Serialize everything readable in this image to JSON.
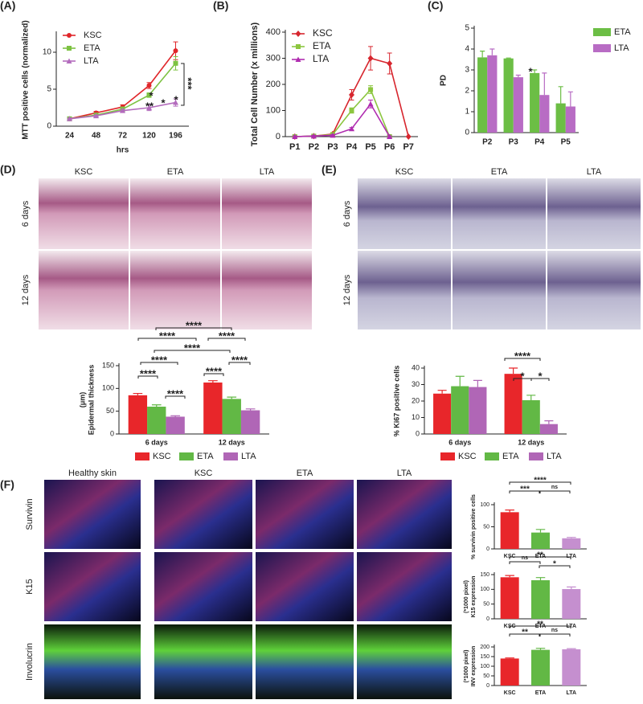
{
  "panels": {
    "labels": [
      "(A)",
      "(B)",
      "(C)",
      "(D)",
      "(E)",
      "(F)"
    ],
    "D": {
      "columns": [
        "KSC",
        "ETA",
        "LTA"
      ],
      "rows": [
        "6 days",
        "12 days"
      ]
    },
    "E": {
      "columns": [
        "KSC",
        "ETA",
        "LTA"
      ],
      "rows": [
        "6 days",
        "12 days"
      ]
    },
    "F": {
      "columns": [
        "Healthy skin",
        "KSC",
        "ETA",
        "LTA"
      ],
      "rows": [
        "Survivin",
        "K15",
        "Involucrin"
      ]
    }
  },
  "chart_data": [
    {
      "type": "line",
      "ylabel": "MTT positive cells (normalized)",
      "xlabel": "hrs",
      "categories": [
        "24",
        "48",
        "72",
        "120",
        "196"
      ],
      "ylim": [
        0,
        12.5
      ],
      "yticks": [
        0,
        5,
        10
      ],
      "legend": "upper left",
      "series": [
        {
          "name": "KSC",
          "color": "#e0262a",
          "marker": "circle",
          "values": [
            1,
            1.8,
            2.6,
            5.5,
            10.2
          ],
          "errors": [
            0.1,
            0.2,
            0.3,
            0.4,
            1.2
          ]
        },
        {
          "name": "ETA",
          "color": "#7dc242",
          "marker": "square",
          "values": [
            1,
            1.5,
            2.3,
            4.2,
            8.5
          ],
          "errors": [
            0.1,
            0.2,
            0.3,
            0.3,
            0.9
          ]
        },
        {
          "name": "LTA",
          "color": "#b36bbd",
          "marker": "triangle",
          "values": [
            1,
            1.4,
            2.1,
            2.5,
            3.2
          ],
          "errors": [
            0.1,
            0.1,
            0.2,
            0.4,
            0.5
          ]
        }
      ],
      "annotations": [
        "*",
        "**",
        "*",
        "*",
        "***"
      ]
    },
    {
      "type": "line",
      "ylabel": "Total Cell Number (x millions)",
      "categories": [
        "P1",
        "P2",
        "P3",
        "P4",
        "P5",
        "P6",
        "P7"
      ],
      "ylim": [
        0,
        400
      ],
      "yticks": [
        0,
        100,
        200,
        300,
        400
      ],
      "legend": "upper left",
      "series": [
        {
          "name": "KSC",
          "color": "#d7262e",
          "marker": "diamond",
          "values": [
            0,
            2,
            10,
            160,
            300,
            280,
            0
          ],
          "errors": [
            3,
            3,
            5,
            20,
            45,
            40,
            null
          ]
        },
        {
          "name": "ETA",
          "color": "#8cc63f",
          "marker": "square",
          "values": [
            0,
            2,
            8,
            100,
            180,
            0,
            null
          ],
          "errors": [
            3,
            3,
            4,
            10,
            15,
            3,
            null
          ]
        },
        {
          "name": "LTA",
          "color": "#b02cb0",
          "marker": "triangle",
          "values": [
            0,
            2,
            5,
            30,
            125,
            0,
            null
          ],
          "errors": [
            3,
            3,
            3,
            5,
            15,
            3,
            null
          ]
        }
      ]
    },
    {
      "type": "bar",
      "ylabel": "PD",
      "categories": [
        "P2",
        "P3",
        "P4",
        "P5"
      ],
      "ylim": [
        0,
        5
      ],
      "yticks": [
        0,
        1,
        2,
        3,
        4,
        5
      ],
      "legend": "upper right",
      "series": [
        {
          "name": "ETA",
          "color": "#6cbe45",
          "values": [
            3.6,
            3.55,
            2.85,
            1.4
          ],
          "errors": [
            0.3,
            0.02,
            0.15,
            0.8
          ]
        },
        {
          "name": "LTA",
          "color": "#b86cc4",
          "values": [
            3.7,
            2.65,
            1.8,
            1.25
          ],
          "errors": [
            0.3,
            0.1,
            1.05,
            0.7
          ]
        }
      ],
      "annotations": [
        "*"
      ]
    },
    {
      "type": "bar",
      "ylabel": [
        "Epidermal thickness",
        "(μm)"
      ],
      "categories": [
        "6 days",
        "12 days"
      ],
      "ylim": [
        0,
        150
      ],
      "yticks": [
        0,
        50,
        100,
        150
      ],
      "legend": "bottom",
      "series": [
        {
          "name": "KSC",
          "color": "#e8262a",
          "values": [
            85,
            113
          ],
          "errors": [
            4,
            4
          ]
        },
        {
          "name": "ETA",
          "color": "#62b845",
          "values": [
            60,
            77
          ],
          "errors": [
            4,
            4
          ]
        },
        {
          "name": "LTA",
          "color": "#b066b6",
          "values": [
            38,
            52
          ],
          "errors": [
            2,
            3
          ]
        }
      ],
      "annotations": [
        "****",
        "****",
        "****",
        "****",
        "****",
        "****",
        "****",
        "****",
        "****"
      ]
    },
    {
      "type": "bar",
      "ylabel": "% Ki67 positive cells",
      "categories": [
        "6 days",
        "12 days"
      ],
      "ylim": [
        0,
        40
      ],
      "yticks": [
        0,
        10,
        20,
        30,
        40
      ],
      "legend": "bottom",
      "series": [
        {
          "name": "KSC",
          "color": "#e8262a",
          "values": [
            24.5,
            36.5
          ],
          "errors": [
            2,
            3.5
          ]
        },
        {
          "name": "ETA",
          "color": "#62b845",
          "values": [
            29,
            20.5
          ],
          "errors": [
            6,
            3
          ]
        },
        {
          "name": "LTA",
          "color": "#b066b6",
          "values": [
            28.5,
            6
          ],
          "errors": [
            4,
            2
          ]
        }
      ],
      "annotations": [
        "****",
        "*",
        "*"
      ]
    },
    {
      "type": "bar",
      "ylabel": [
        "% survivin positive cells"
      ],
      "categories": [
        "KSC",
        "ETA",
        "LTA"
      ],
      "ylim": [
        0,
        100
      ],
      "yticks": [
        0,
        50,
        100
      ],
      "values": [
        83,
        37,
        24
      ],
      "errors": [
        5,
        7,
        2
      ],
      "colors": [
        "#e8262a",
        "#62b845",
        "#c58fcf"
      ],
      "annotations": [
        "***",
        "****",
        "ns"
      ]
    },
    {
      "type": "bar",
      "ylabel": [
        "K15 expression",
        "(*1000 pixel)"
      ],
      "categories": [
        "KSC",
        "ETA",
        "LTA"
      ],
      "ylim": [
        0,
        150
      ],
      "yticks": [
        0,
        50,
        100,
        150
      ],
      "values": [
        141,
        131,
        101
      ],
      "errors": [
        6,
        9,
        7
      ],
      "colors": [
        "#e8262a",
        "#62b845",
        "#c58fcf"
      ],
      "annotations": [
        "ns",
        "**",
        "*"
      ]
    },
    {
      "type": "bar",
      "ylabel": [
        "INV expression",
        "(*1000 pixel)"
      ],
      "categories": [
        "KSC",
        "ETA",
        "LTA"
      ],
      "ylim": [
        0,
        200
      ],
      "yticks": [
        0,
        50,
        100,
        150,
        200
      ],
      "values": [
        140,
        185,
        188
      ],
      "errors": [
        3,
        8,
        3
      ],
      "colors": [
        "#e8262a",
        "#62b845",
        "#c58fcf"
      ],
      "annotations": [
        "**",
        "**",
        "ns"
      ]
    }
  ]
}
